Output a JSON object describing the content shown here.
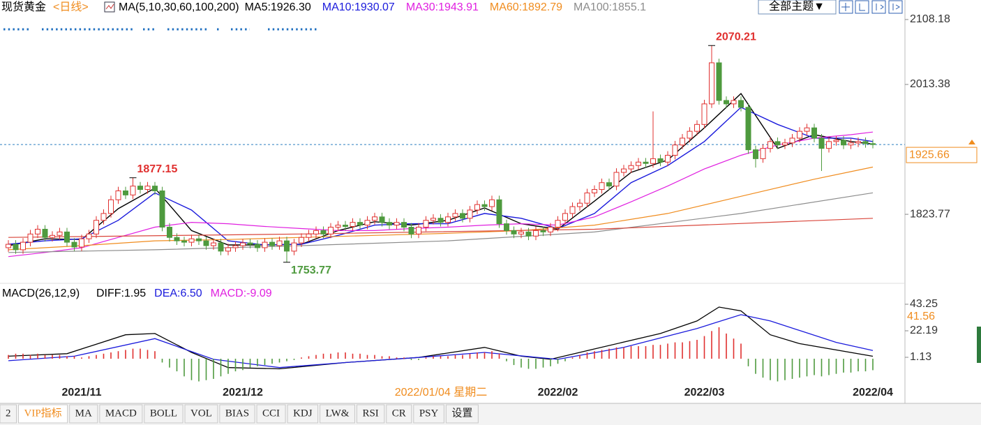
{
  "chart_data": [
    {
      "type": "candlestick",
      "title": "现货黄金",
      "period": "<日线>",
      "indicator": "MA(5,10,30,60,100,200)",
      "cursor_date": "2022/01/04 星期二",
      "up_color": "#e0302f",
      "down_color": "#4e9a3e",
      "categories": [
        null,
        null,
        null,
        null,
        null,
        null,
        null,
        null,
        null,
        null,
        "2021/11",
        null,
        null,
        null,
        null,
        null,
        null,
        null,
        null,
        null,
        null,
        null,
        null,
        null,
        null,
        null,
        null,
        null,
        null,
        null,
        null,
        null,
        "2021/12",
        null,
        null,
        null,
        null,
        null,
        null,
        null,
        null,
        null,
        null,
        null,
        null,
        null,
        null,
        null,
        null,
        null,
        null,
        null,
        null,
        null,
        null,
        null,
        null,
        null,
        null,
        null,
        null,
        null,
        null,
        null,
        null,
        null,
        null,
        null,
        null,
        null,
        null,
        null,
        null,
        null,
        null,
        "2022/02",
        null,
        null,
        null,
        null,
        null,
        null,
        null,
        null,
        null,
        null,
        null,
        null,
        null,
        null,
        null,
        null,
        null,
        null,
        null,
        "2022/03",
        null,
        null,
        null,
        null,
        null,
        null,
        null,
        null,
        null,
        null,
        null,
        null,
        null,
        null,
        null,
        null,
        null,
        null,
        null,
        null,
        null,
        null,
        "2022/04"
      ],
      "open": [
        1775,
        1780,
        1772,
        1783,
        1795,
        1802,
        1790,
        1793,
        1798,
        1783,
        1776,
        1788,
        1795,
        1815,
        1825,
        1845,
        1858,
        1852,
        1865,
        1860,
        1865,
        1858,
        1805,
        1790,
        1785,
        1783,
        1788,
        1785,
        1778,
        1782,
        1770,
        1775,
        1778,
        1782,
        1780,
        1775,
        1783,
        1778,
        1785,
        1770,
        1782,
        1790,
        1795,
        1800,
        1795,
        1805,
        1808,
        1806,
        1812,
        1808,
        1815,
        1820,
        1812,
        1808,
        1812,
        1805,
        1795,
        1805,
        1815,
        1818,
        1812,
        1820,
        1825,
        1818,
        1830,
        1838,
        1835,
        1845,
        1810,
        1800,
        1795,
        1798,
        1792,
        1800,
        1798,
        1805,
        1815,
        1825,
        1835,
        1840,
        1855,
        1860,
        1870,
        1865,
        1885,
        1890,
        1895,
        1900,
        1898,
        1905,
        1900,
        1910,
        1925,
        1935,
        1945,
        1955,
        1985,
        2045,
        1990,
        1985,
        1990,
        1980,
        1918,
        1905,
        1920,
        1930,
        1925,
        1928,
        1935,
        1945,
        1950,
        1935,
        1920,
        1930,
        1932,
        1925,
        1928,
        1930,
        1927
      ],
      "high": [
        1786,
        1786,
        1789,
        1801,
        1808,
        1808,
        1799,
        1804,
        1804,
        1789,
        1794,
        1801,
        1821,
        1831,
        1851,
        1864,
        1864,
        1877.15,
        1871,
        1871,
        1871,
        1864,
        1811,
        1796,
        1791,
        1794,
        1794,
        1791,
        1788,
        1788,
        1781,
        1784,
        1788,
        1788,
        1786,
        1789,
        1789,
        1791,
        1791,
        1788,
        1796,
        1801,
        1806,
        1806,
        1811,
        1814,
        1814,
        1818,
        1818,
        1821,
        1826,
        1826,
        1818,
        1818,
        1818,
        1811,
        1811,
        1821,
        1824,
        1824,
        1826,
        1831,
        1831,
        1836,
        1844,
        1844,
        1851,
        1851,
        1816,
        1806,
        1804,
        1804,
        1806,
        1806,
        1811,
        1821,
        1831,
        1841,
        1846,
        1861,
        1866,
        1876,
        1876,
        1891,
        1896,
        1901,
        1906,
        1906,
        1974,
        1911,
        1916,
        1931,
        1941,
        1951,
        1961,
        1991,
        2070.21,
        2051,
        1996,
        1996,
        1996,
        1986,
        1924,
        1926,
        1936,
        1936,
        1934,
        1941,
        1951,
        1956,
        1956,
        1941,
        1936,
        1938,
        1938,
        1934,
        1936,
        1936,
        1933
      ],
      "low": [
        1769,
        1766,
        1766,
        1777,
        1789,
        1784,
        1784,
        1787,
        1777,
        1770,
        1770,
        1782,
        1789,
        1809,
        1819,
        1839,
        1846,
        1846,
        1854,
        1854,
        1852,
        1799,
        1784,
        1779,
        1777,
        1777,
        1779,
        1772,
        1772,
        1764,
        1764,
        1769,
        1772,
        1774,
        1769,
        1769,
        1772,
        1772,
        1753.77,
        1764,
        1776,
        1784,
        1789,
        1789,
        1789,
        1799,
        1800,
        1800,
        1802,
        1802,
        1809,
        1806,
        1802,
        1802,
        1799,
        1789,
        1789,
        1799,
        1809,
        1806,
        1806,
        1814,
        1812,
        1812,
        1824,
        1829,
        1829,
        1804,
        1794,
        1789,
        1789,
        1786,
        1786,
        1792,
        1792,
        1799,
        1809,
        1819,
        1829,
        1834,
        1849,
        1854,
        1859,
        1859,
        1879,
        1884,
        1889,
        1892,
        1892,
        1894,
        1894,
        1904,
        1919,
        1929,
        1939,
        1949,
        1979,
        1984,
        1979,
        1979,
        1974,
        1912,
        1892,
        1899,
        1914,
        1919,
        1919,
        1922,
        1929,
        1939,
        1929,
        1887,
        1914,
        1924,
        1919,
        1919,
        1922,
        1921,
        1920
      ],
      "close": [
        1780,
        1772,
        1783,
        1795,
        1802,
        1790,
        1793,
        1798,
        1783,
        1776,
        1788,
        1795,
        1815,
        1825,
        1845,
        1858,
        1852,
        1865,
        1860,
        1865,
        1858,
        1805,
        1790,
        1785,
        1783,
        1788,
        1785,
        1778,
        1782,
        1770,
        1775,
        1778,
        1782,
        1780,
        1775,
        1783,
        1778,
        1785,
        1770,
        1782,
        1790,
        1795,
        1800,
        1795,
        1805,
        1808,
        1806,
        1812,
        1808,
        1815,
        1820,
        1812,
        1808,
        1812,
        1805,
        1795,
        1805,
        1815,
        1818,
        1812,
        1820,
        1825,
        1818,
        1830,
        1838,
        1835,
        1845,
        1810,
        1800,
        1795,
        1798,
        1792,
        1800,
        1798,
        1805,
        1815,
        1825,
        1835,
        1840,
        1855,
        1860,
        1870,
        1865,
        1885,
        1890,
        1895,
        1900,
        1898,
        1905,
        1900,
        1910,
        1925,
        1935,
        1945,
        1955,
        1985,
        2045,
        1990,
        1985,
        1990,
        1980,
        1918,
        1905,
        1920,
        1930,
        1925,
        1928,
        1935,
        1945,
        1950,
        1935,
        1920,
        1930,
        1932,
        1925,
        1928,
        1930,
        1927,
        1925.66
      ],
      "annotations": [
        {
          "high": 17
        },
        {
          "low": 38
        },
        {
          "high": 96
        }
      ],
      "series": [
        {
          "name": "MA5:1926.30",
          "color": "#000000",
          "x": [
            0,
            5,
            10,
            15,
            20,
            25,
            30,
            35,
            40,
            45,
            50,
            55,
            60,
            65,
            70,
            75,
            80,
            85,
            90,
            95,
            100,
            105,
            110,
            115,
            118
          ],
          "values": [
            1778,
            1788,
            1787,
            1832,
            1862,
            1800,
            1779,
            1779,
            1780,
            1800,
            1813,
            1808,
            1815,
            1833,
            1810,
            1802,
            1843,
            1885,
            1903,
            1950,
            2000,
            1920,
            1940,
            1930,
            1926.3
          ]
        },
        {
          "name": "MA10:1930.07",
          "color": "#1a1adc",
          "x": [
            0,
            5,
            10,
            15,
            20,
            25,
            30,
            35,
            40,
            45,
            50,
            55,
            60,
            65,
            70,
            75,
            80,
            85,
            90,
            95,
            100,
            105,
            110,
            115,
            118
          ],
          "values": [
            1780,
            1785,
            1788,
            1815,
            1855,
            1830,
            1785,
            1779,
            1780,
            1793,
            1808,
            1810,
            1810,
            1825,
            1818,
            1803,
            1825,
            1870,
            1895,
            1930,
            1980,
            1955,
            1935,
            1935,
            1930.07
          ]
        },
        {
          "name": "MA30:1943.91",
          "color": "#e020e0",
          "x": [
            0,
            5,
            10,
            15,
            20,
            25,
            30,
            35,
            40,
            45,
            50,
            55,
            60,
            65,
            70,
            75,
            80,
            85,
            90,
            95,
            100,
            105,
            110,
            115,
            118
          ],
          "values": [
            1762,
            1768,
            1775,
            1790,
            1805,
            1812,
            1810,
            1806,
            1803,
            1800,
            1800,
            1803,
            1805,
            1808,
            1810,
            1808,
            1820,
            1842,
            1865,
            1890,
            1910,
            1925,
            1935,
            1940,
            1943.91
          ]
        },
        {
          "name": "MA60:1892.79",
          "color": "#f08c1e",
          "x": [
            0,
            10,
            20,
            30,
            40,
            50,
            60,
            70,
            80,
            90,
            100,
            110,
            118
          ],
          "values": [
            1772,
            1778,
            1785,
            1787,
            1790,
            1793,
            1796,
            1800,
            1808,
            1825,
            1850,
            1875,
            1892.79
          ]
        },
        {
          "name": "MA100:1855.1",
          "color": "#8c8c8c",
          "x": [
            0,
            20,
            40,
            60,
            80,
            100,
            118
          ],
          "values": [
            1768,
            1772,
            1778,
            1785,
            1798,
            1825,
            1855.1
          ]
        },
        {
          "color": "#d9453a",
          "x": [
            0,
            40,
            80,
            118
          ],
          "values": [
            1790,
            1795,
            1802,
            1818
          ]
        }
      ],
      "ylim": [
        1724,
        2131.6
      ],
      "yticks": [
        2108.18,
        2013.38,
        1823.77
      ]
    },
    {
      "type": "macd",
      "title": "MACD(26,12,9)",
      "series": [
        {
          "name": "DIFF:1.95",
          "color": "#000000",
          "x": [
            0,
            8,
            16,
            20,
            25,
            30,
            37,
            46,
            56,
            65,
            70,
            74,
            80,
            89,
            94,
            97,
            100,
            104,
            108,
            118
          ],
          "values": [
            2,
            4,
            19,
            20,
            5,
            -7,
            -8,
            -3,
            1,
            9,
            2,
            -0.5,
            7.8,
            20,
            30,
            41,
            38,
            19,
            12,
            1.95
          ]
        },
        {
          "name": "DEA:6.50",
          "color": "#1a1adc",
          "x": [
            0,
            9,
            20,
            28,
            37,
            46,
            56,
            65,
            75,
            84,
            94,
            100,
            104,
            113,
            118
          ],
          "values": [
            -1.6,
            2,
            16,
            -0.5,
            -7,
            -3,
            1,
            5,
            -0.5,
            9,
            24,
            35,
            30,
            13,
            6.5
          ]
        },
        {
          "name": "MACD:-9.09",
          "color": "#e020e0",
          "up_color": "#e0302f",
          "down_color": "#4e9a3e",
          "values": [
            3,
            4,
            4,
            3,
            4,
            3,
            3,
            3,
            2,
            2,
            1,
            2,
            3,
            4,
            5,
            6,
            7,
            8,
            8,
            7,
            6,
            -3,
            -7,
            -10,
            -14,
            -17,
            -18,
            -17,
            -16,
            -14,
            -12,
            -10,
            -9,
            -7,
            -6,
            -5,
            -4,
            -3,
            -2,
            -1,
            1,
            2,
            3,
            4,
            4,
            5,
            5,
            4,
            4,
            3,
            3,
            2,
            2,
            1,
            1,
            -1,
            -1,
            1,
            2,
            2,
            2,
            3,
            3,
            4,
            5,
            5,
            6,
            4,
            -2,
            -5,
            -7,
            -8,
            -8,
            -7,
            -6,
            -4,
            -2,
            1,
            3,
            5,
            6,
            7,
            8,
            9,
            9,
            10,
            10,
            10,
            11,
            11,
            12,
            13,
            13,
            14,
            15,
            18,
            22,
            25,
            20,
            16,
            12,
            -6,
            -12,
            -15,
            -17,
            -18,
            -17,
            -16,
            -15,
            -14,
            -13,
            -14,
            -13,
            -12,
            -11,
            -11,
            -10,
            -10,
            -9.09
          ]
        }
      ],
      "axis_marker": 41.56,
      "ylim": [
        -19.92,
        46.56
      ],
      "yticks": [
        43.25,
        22.19,
        1.13
      ]
    }
  ],
  "header": {
    "theme_button": "全部主题▼"
  },
  "tabs": [
    "2",
    "VIP指标",
    "MA",
    "MACD",
    "BOLL",
    "VOL",
    "BIAS",
    "CCI",
    "KDJ",
    "LW&",
    "RSI",
    "CR",
    "PSY",
    "设置"
  ]
}
